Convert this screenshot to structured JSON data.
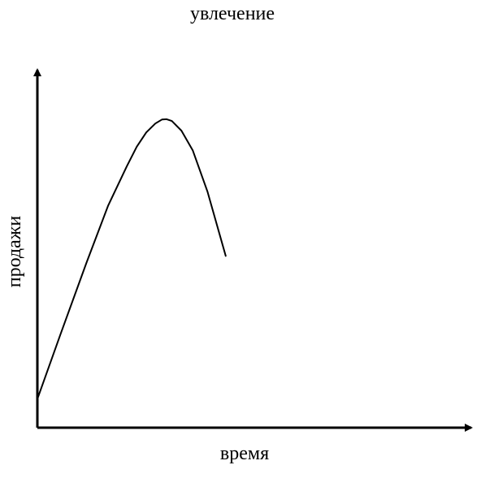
{
  "chart_data": {
    "type": "line",
    "title": "увлечение",
    "xlabel": "время",
    "ylabel": "продажи",
    "grid": false,
    "legend": "none",
    "axes_arrows": true,
    "colors": {
      "line": "#000000",
      "axes": "#000000",
      "background": "#ffffff"
    },
    "xlim": [
      0,
      100
    ],
    "ylim": [
      0,
      100
    ],
    "series": [
      {
        "values": [
          {
            "x": 0.0,
            "y": 8.0
          },
          {
            "x": 5.3,
            "y": 26.0
          },
          {
            "x": 11.3,
            "y": 46.0
          },
          {
            "x": 16.3,
            "y": 62.0
          },
          {
            "x": 20.6,
            "y": 73.0
          },
          {
            "x": 22.9,
            "y": 78.5
          },
          {
            "x": 25.1,
            "y": 82.5
          },
          {
            "x": 27.2,
            "y": 85.0
          },
          {
            "x": 28.7,
            "y": 86.1
          },
          {
            "x": 29.8,
            "y": 86.2
          },
          {
            "x": 31.0,
            "y": 85.7
          },
          {
            "x": 33.2,
            "y": 83.0
          },
          {
            "x": 35.8,
            "y": 77.5
          },
          {
            "x": 39.2,
            "y": 66.0
          },
          {
            "x": 43.4,
            "y": 48.0
          }
        ]
      }
    ]
  }
}
